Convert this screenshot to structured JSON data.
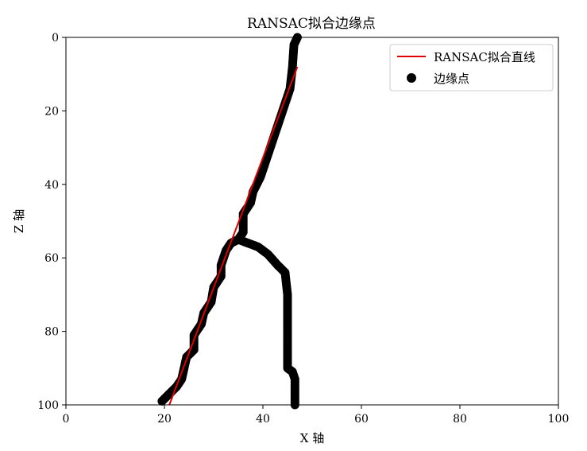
{
  "chart_data": {
    "type": "scatter",
    "title": "RANSAC拟合边缘点",
    "xlabel": "X 轴",
    "ylabel": "Z 轴",
    "xlim": [
      0,
      100
    ],
    "ylim": [
      100,
      0
    ],
    "y_inverted": true,
    "xticks": [
      0,
      20,
      40,
      60,
      80,
      100
    ],
    "yticks": [
      0,
      20,
      40,
      60,
      80,
      100
    ],
    "grid": false,
    "legend_position": "top-right",
    "series": [
      {
        "name": "RANSAC拟合直线",
        "type": "line",
        "color": "#e00000",
        "points": [
          [
            21,
            100
          ],
          [
            47,
            8
          ]
        ]
      },
      {
        "name": "边缘点",
        "type": "scatter",
        "color": "#000000",
        "polylines": [
          [
            [
              47,
              0
            ],
            [
              46.3,
              2
            ],
            [
              46,
              8
            ],
            [
              45.5,
              14
            ],
            [
              44,
              20
            ],
            [
              43,
              24
            ],
            [
              42,
              28
            ],
            [
              40.5,
              34
            ],
            [
              39.5,
              38
            ],
            [
              38,
              42
            ],
            [
              37.5,
              45
            ],
            [
              36,
              48
            ],
            [
              36,
              53
            ],
            [
              35,
              55
            ],
            [
              33.5,
              56
            ],
            [
              32.5,
              58
            ],
            [
              31.5,
              62
            ],
            [
              31.5,
              65
            ],
            [
              30,
              68
            ],
            [
              29.5,
              72
            ],
            [
              28,
              75
            ],
            [
              27.5,
              78
            ],
            [
              26,
              81
            ],
            [
              26,
              85
            ],
            [
              24.5,
              87
            ],
            [
              24,
              90
            ],
            [
              23.5,
              93
            ],
            [
              22.5,
              95
            ],
            [
              21,
              97
            ],
            [
              19.5,
              99
            ]
          ],
          [
            [
              35,
              55
            ],
            [
              37,
              56
            ],
            [
              39,
              57
            ],
            [
              41,
              59
            ],
            [
              43,
              62
            ],
            [
              44.5,
              64
            ],
            [
              45,
              70
            ],
            [
              45,
              78
            ],
            [
              45,
              85
            ],
            [
              45,
              90
            ],
            [
              46,
              91
            ],
            [
              46.5,
              93
            ],
            [
              46.5,
              100
            ]
          ]
        ]
      }
    ]
  }
}
